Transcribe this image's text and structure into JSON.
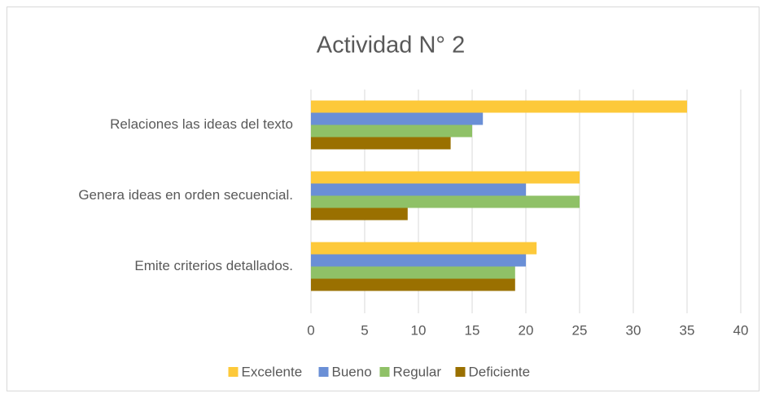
{
  "chart_data": {
    "type": "barh",
    "title": "Actividad N° 2",
    "categories": [
      "Relaciones las ideas del texto",
      "Genera ideas en orden secuencial.",
      "Emite criterios detallados."
    ],
    "series": [
      {
        "name": "Excelente",
        "color": "#fdc93a",
        "values": [
          35,
          25,
          21
        ]
      },
      {
        "name": "Bueno",
        "color": "#6a8fd6",
        "values": [
          16,
          20,
          20
        ]
      },
      {
        "name": "Regular",
        "color": "#8fc167",
        "values": [
          15,
          25,
          19
        ]
      },
      {
        "name": "Deficiente",
        "color": "#9a7000",
        "values": [
          13,
          9,
          19
        ]
      }
    ],
    "xlim": [
      0,
      40
    ],
    "xticks": [
      0,
      5,
      10,
      15,
      20,
      25,
      30,
      35,
      40
    ],
    "grid": true,
    "legend": "bottom"
  }
}
